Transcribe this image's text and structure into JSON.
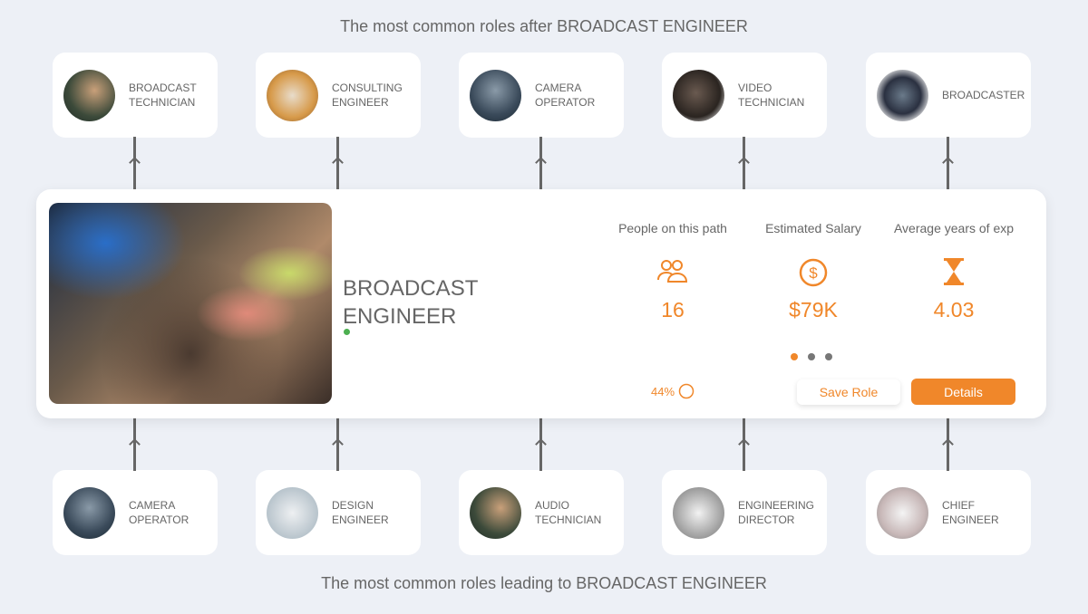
{
  "top_heading": "The most common roles after BROADCAST ENGINEER",
  "bottom_heading": "The most common roles leading to BROADCAST ENGINEER",
  "next_roles": [
    {
      "label": "BROADCAST TECHNICIAN"
    },
    {
      "label": "CONSULTING ENGINEER"
    },
    {
      "label": "CAMERA OPERATOR"
    },
    {
      "label": "VIDEO TECHNICIAN"
    },
    {
      "label": "BROADCASTER"
    }
  ],
  "previous_roles": [
    {
      "label": "CAMERA OPERATOR"
    },
    {
      "label": "DESIGN ENGINEER"
    },
    {
      "label": "AUDIO TECHNICIAN"
    },
    {
      "label": "ENGINEERING DIRECTOR"
    },
    {
      "label": "CHIEF ENGINEER"
    }
  ],
  "current_role": {
    "title": "BROADCAST ENGINEER",
    "stats": [
      {
        "label": "People on this path",
        "value": "16",
        "icon": "people-icon"
      },
      {
        "label": "Estimated Salary",
        "value": "$79K",
        "icon": "dollar-circle-icon"
      },
      {
        "label": "Average years of exp",
        "value": "4.03",
        "icon": "hourglass-icon"
      }
    ],
    "match_percent": "44%",
    "pager": {
      "pages": 3,
      "active": 1
    },
    "save_label": "Save Role",
    "details_label": "Details"
  },
  "colors": {
    "accent": "#f0872a",
    "background": "#edf0f6",
    "status_dot": "#4caf50"
  }
}
